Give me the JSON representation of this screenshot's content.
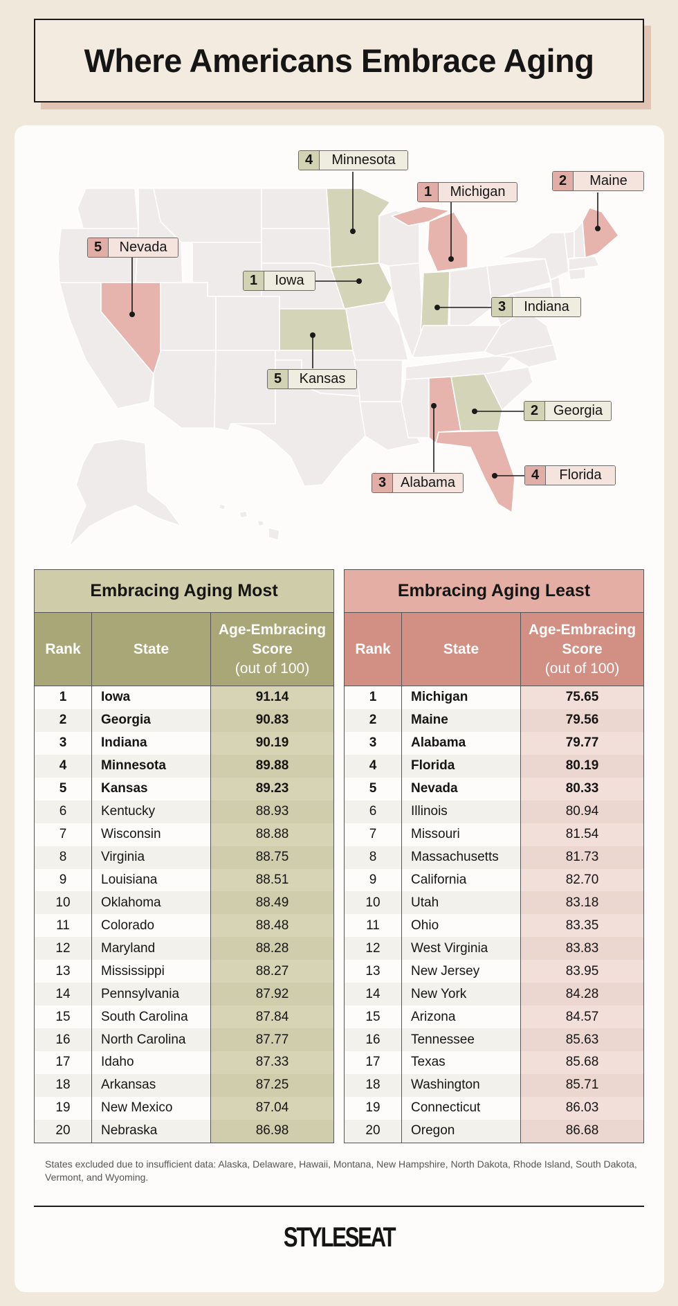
{
  "title": "Where Americans Embrace Aging",
  "map": {
    "callouts": [
      {
        "rank": "4",
        "state": "Minnesota",
        "group": "most"
      },
      {
        "rank": "1",
        "state": "Michigan",
        "group": "least"
      },
      {
        "rank": "2",
        "state": "Maine",
        "group": "least"
      },
      {
        "rank": "5",
        "state": "Nevada",
        "group": "least"
      },
      {
        "rank": "1",
        "state": "Iowa",
        "group": "most"
      },
      {
        "rank": "3",
        "state": "Indiana",
        "group": "most"
      },
      {
        "rank": "5",
        "state": "Kansas",
        "group": "most"
      },
      {
        "rank": "2",
        "state": "Georgia",
        "group": "most"
      },
      {
        "rank": "3",
        "state": "Alabama",
        "group": "least"
      },
      {
        "rank": "4",
        "state": "Florida",
        "group": "least"
      }
    ],
    "colors": {
      "most": "#d4d4b8",
      "least": "#e6b3ad",
      "other": "#eeebea"
    }
  },
  "most": {
    "caption": "Embracing Aging Most",
    "headers": {
      "rank": "Rank",
      "state": "State",
      "score_l1": "Age-Embracing",
      "score_l2": "Score",
      "score_l3": "(out of 100)"
    },
    "rows": [
      {
        "rank": "1",
        "state": "Iowa",
        "score": "91.14"
      },
      {
        "rank": "2",
        "state": "Georgia",
        "score": "90.83"
      },
      {
        "rank": "3",
        "state": "Indiana",
        "score": "90.19"
      },
      {
        "rank": "4",
        "state": "Minnesota",
        "score": "89.88"
      },
      {
        "rank": "5",
        "state": "Kansas",
        "score": "89.23"
      },
      {
        "rank": "6",
        "state": "Kentucky",
        "score": "88.93"
      },
      {
        "rank": "7",
        "state": "Wisconsin",
        "score": "88.88"
      },
      {
        "rank": "8",
        "state": "Virginia",
        "score": "88.75"
      },
      {
        "rank": "9",
        "state": "Louisiana",
        "score": "88.51"
      },
      {
        "rank": "10",
        "state": "Oklahoma",
        "score": "88.49"
      },
      {
        "rank": "11",
        "state": "Colorado",
        "score": "88.48"
      },
      {
        "rank": "12",
        "state": "Maryland",
        "score": "88.28"
      },
      {
        "rank": "13",
        "state": "Mississippi",
        "score": "88.27"
      },
      {
        "rank": "14",
        "state": "Pennsylvania",
        "score": "87.92"
      },
      {
        "rank": "15",
        "state": "South Carolina",
        "score": "87.84"
      },
      {
        "rank": "16",
        "state": "North Carolina",
        "score": "87.77"
      },
      {
        "rank": "17",
        "state": "Idaho",
        "score": "87.33"
      },
      {
        "rank": "18",
        "state": "Arkansas",
        "score": "87.25"
      },
      {
        "rank": "19",
        "state": "New Mexico",
        "score": "87.04"
      },
      {
        "rank": "20",
        "state": "Nebraska",
        "score": "86.98"
      }
    ]
  },
  "least": {
    "caption": "Embracing Aging Least",
    "headers": {
      "rank": "Rank",
      "state": "State",
      "score_l1": "Age-Embracing",
      "score_l2": "Score",
      "score_l3": "(out of 100)"
    },
    "rows": [
      {
        "rank": "1",
        "state": "Michigan",
        "score": "75.65"
      },
      {
        "rank": "2",
        "state": "Maine",
        "score": "79.56"
      },
      {
        "rank": "3",
        "state": "Alabama",
        "score": "79.77"
      },
      {
        "rank": "4",
        "state": "Florida",
        "score": "80.19"
      },
      {
        "rank": "5",
        "state": "Nevada",
        "score": "80.33"
      },
      {
        "rank": "6",
        "state": "Illinois",
        "score": "80.94"
      },
      {
        "rank": "7",
        "state": "Missouri",
        "score": "81.54"
      },
      {
        "rank": "8",
        "state": "Massachusetts",
        "score": "81.73"
      },
      {
        "rank": "9",
        "state": "California",
        "score": "82.70"
      },
      {
        "rank": "10",
        "state": "Utah",
        "score": "83.18"
      },
      {
        "rank": "11",
        "state": "Ohio",
        "score": "83.35"
      },
      {
        "rank": "12",
        "state": "West Virginia",
        "score": "83.83"
      },
      {
        "rank": "13",
        "state": "New Jersey",
        "score": "83.95"
      },
      {
        "rank": "14",
        "state": "New York",
        "score": "84.28"
      },
      {
        "rank": "15",
        "state": "Arizona",
        "score": "84.57"
      },
      {
        "rank": "16",
        "state": "Tennessee",
        "score": "85.63"
      },
      {
        "rank": "17",
        "state": "Texas",
        "score": "85.68"
      },
      {
        "rank": "18",
        "state": "Washington",
        "score": "85.71"
      },
      {
        "rank": "19",
        "state": "Connecticut",
        "score": "86.03"
      },
      {
        "rank": "20",
        "state": "Oregon",
        "score": "86.68"
      }
    ]
  },
  "footnote": "States excluded due to insufficient data: Alaska, Delaware, Hawaii, Montana, New Hampshire, North Dakota, Rhode Island, South Dakota, Vermont, and Wyoming.",
  "logo": "STYLESEAT"
}
